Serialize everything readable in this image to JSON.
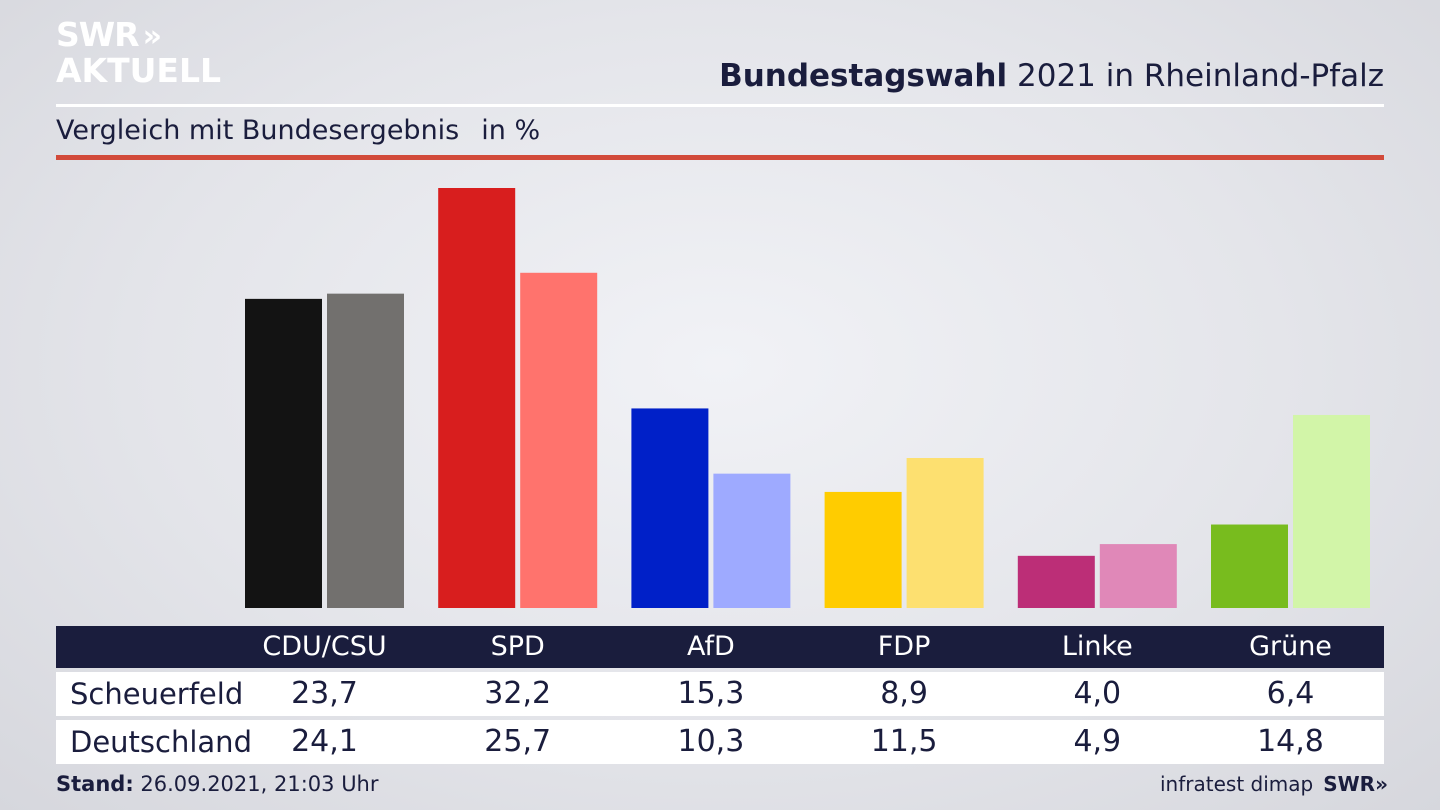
{
  "logo": {
    "line1": "SWR",
    "arrows": "»",
    "line2": "AKTUELL"
  },
  "header": {
    "title_bold": "Bundestagswahl",
    "title_rest": "2021 in Rheinland-Pfalz",
    "subtitle": "Vergleich mit Bundesergebnis",
    "unit": "in %"
  },
  "chart_data": {
    "type": "bar",
    "title": "Bundestagswahl 2021 in Rheinland-Pfalz",
    "subtitle": "Vergleich mit Bundesergebnis",
    "unit": "in %",
    "categories": [
      "CDU/CSU",
      "SPD",
      "AfD",
      "FDP",
      "Linke",
      "Grüne"
    ],
    "series": [
      {
        "name": "Scheuerfeld",
        "values": [
          23.7,
          32.2,
          15.3,
          8.9,
          4.0,
          6.4
        ],
        "labels": [
          "23,7",
          "32,2",
          "15,3",
          "8,9",
          "4,0",
          "6,4"
        ]
      },
      {
        "name": "Deutschland",
        "values": [
          24.1,
          25.7,
          10.3,
          11.5,
          4.9,
          14.8
        ],
        "labels": [
          "24,1",
          "25,7",
          "10,3",
          "11,5",
          "4,9",
          "14,8"
        ]
      }
    ],
    "colors": {
      "Scheuerfeld": [
        "#131313",
        "#d81e1e",
        "#0020c8",
        "#ffcc00",
        "#bc2e77",
        "#78bc1e"
      ],
      "Deutschland": [
        "#72706e",
        "#ff736d",
        "#9eaaff",
        "#fde070",
        "#e088b8",
        "#d2f5a8"
      ]
    },
    "ylim": [
      0,
      32.2
    ],
    "grid": false,
    "legend": "table-below"
  },
  "footer": {
    "stand_label": "Stand:",
    "stand_value": "26.09.2021, 21:03 Uhr",
    "source": "infratest dimap",
    "brand": "SWR",
    "brand_arrows": "»"
  }
}
